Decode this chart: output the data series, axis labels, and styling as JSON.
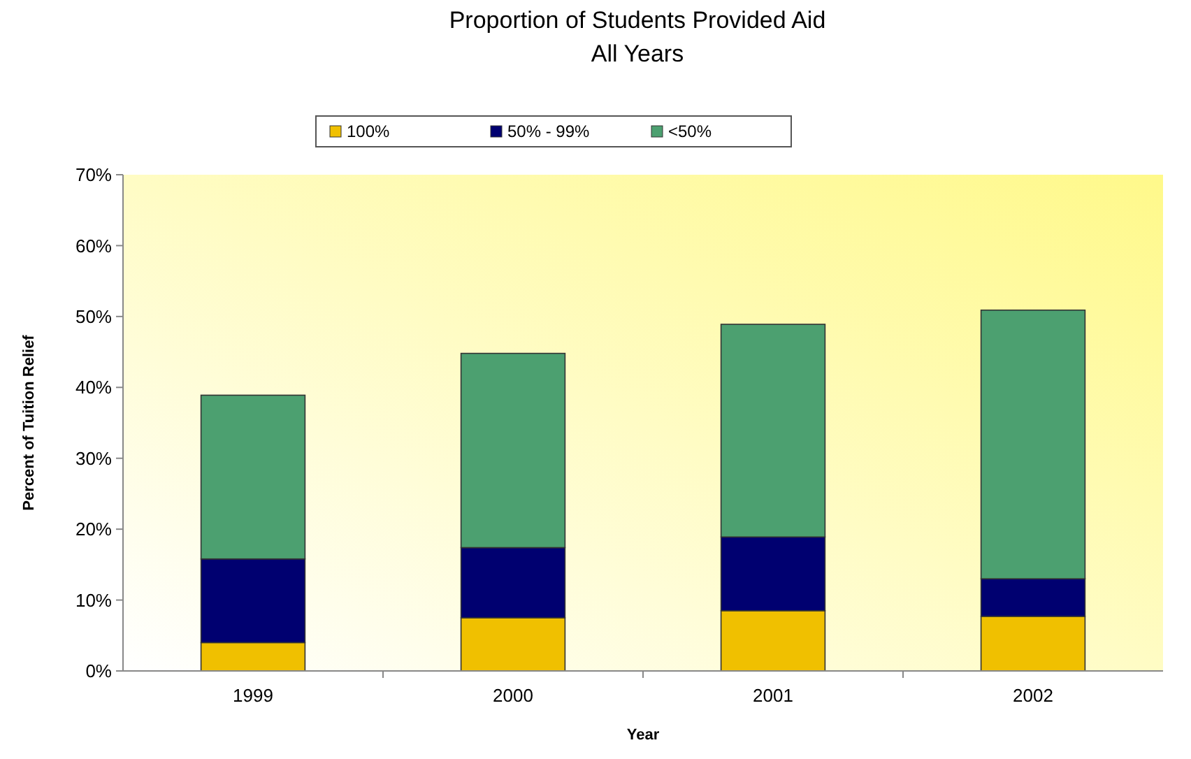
{
  "chart_data": {
    "type": "bar",
    "title": "Proportion of Students Provided Aid",
    "subtitle": "All Years",
    "xlabel": "Year",
    "ylabel": "Percent of Tuition Relief",
    "categories": [
      "1999",
      "2000",
      "2001",
      "2002"
    ],
    "stacked": true,
    "legend": "top",
    "series": [
      {
        "name": "100%",
        "color": "#f0c000",
        "values": [
          4,
          7.5,
          8.5,
          7.7
        ]
      },
      {
        "name": "50% - 99%",
        "color": "#000070",
        "values": [
          11.8,
          9.9,
          10.4,
          5.3
        ]
      },
      {
        "name": "<50%",
        "color": "#4ca070",
        "values": [
          23.1,
          27.4,
          30,
          37.9
        ]
      }
    ],
    "ylim": [
      0,
      70
    ],
    "yticks": [
      {
        "value": 0,
        "label": "0%"
      },
      {
        "value": 10,
        "label": "10%"
      },
      {
        "value": 20,
        "label": "20%"
      },
      {
        "value": 30,
        "label": "30%"
      },
      {
        "value": 40,
        "label": "40%"
      },
      {
        "value": 50,
        "label": "50%"
      },
      {
        "value": 60,
        "label": "60%"
      },
      {
        "value": 70,
        "label": "70%"
      }
    ],
    "grid": false
  }
}
